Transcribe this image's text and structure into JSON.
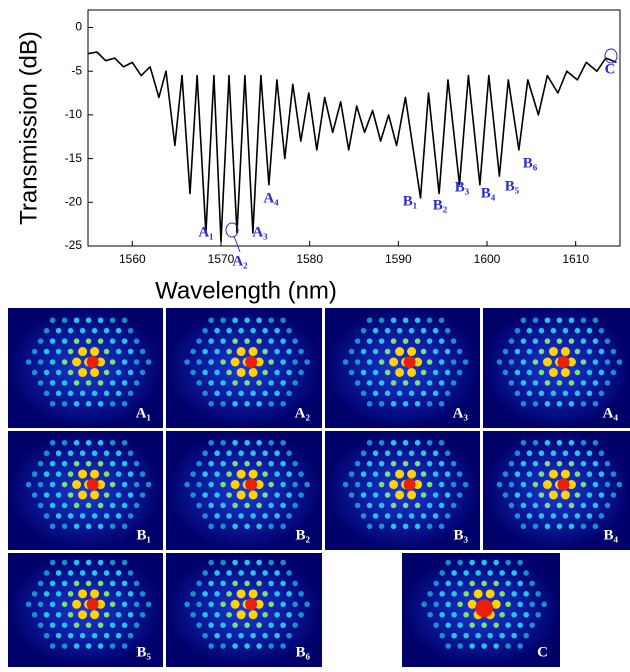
{
  "chart_data": {
    "type": "line",
    "xlabel": "Wavelength (nm)",
    "ylabel": "Transmission (dB)",
    "x": [
      1555,
      1556,
      1557,
      1558,
      1559,
      1560,
      1561,
      1562,
      1563,
      1563.8,
      1564.8,
      1565.6,
      1566.5,
      1567.3,
      1568.3,
      1569.2,
      1570.0,
      1570.9,
      1571.8,
      1572.7,
      1573.6,
      1574.5,
      1575.4,
      1576.3,
      1577.2,
      1578.1,
      1579,
      1579.9,
      1580.8,
      1581.7,
      1582.6,
      1583.5,
      1584.4,
      1585.3,
      1586.2,
      1587.1,
      1588,
      1588.9,
      1589.8,
      1590.8,
      1592.5,
      1593.4,
      1594.6,
      1595.6,
      1596.9,
      1597.9,
      1599.2,
      1600.2,
      1601.4,
      1602.4,
      1603.6,
      1604.6,
      1605.8,
      1606.8,
      1608,
      1609,
      1610.2,
      1611.2,
      1612.4,
      1613.4,
      1614.6
    ],
    "values": [
      -3,
      -2.8,
      -3.8,
      -3.5,
      -4.5,
      -4,
      -5.5,
      -4.5,
      -8,
      -5,
      -13.5,
      -5.5,
      -19,
      -5.5,
      -23.5,
      -5.5,
      -24.5,
      -5.5,
      -23.5,
      -5.5,
      -23.5,
      -5.5,
      -18,
      -6,
      -15,
      -6.5,
      -13,
      -7.5,
      -14,
      -8,
      -12,
      -8.5,
      -14,
      -9,
      -12,
      -9.5,
      -13,
      -10,
      -13.5,
      -8,
      -19.5,
      -7.5,
      -19,
      -6,
      -18,
      -5.5,
      -18,
      -5.5,
      -17,
      -6,
      -14,
      -6,
      -10,
      -5.5,
      -7.5,
      -5,
      -6,
      -4,
      -5,
      -3.5,
      -4
    ],
    "color": "#000000",
    "xlim": [
      1555,
      1615
    ],
    "ylim": [
      -25,
      2
    ],
    "xticks": [
      1560,
      1570,
      1580,
      1590,
      1600,
      1610
    ],
    "yticks": [
      0,
      -5,
      -10,
      -15,
      -20,
      -25
    ],
    "annotations": [
      "A₁",
      "A₂",
      "A₃",
      "A₄",
      "B₁",
      "B₂",
      "B₃",
      "B₄",
      "B₅",
      "B₆",
      "C"
    ],
    "images": [
      {
        "label": "A₁"
      },
      {
        "label": "A₂"
      },
      {
        "label": "A₃"
      },
      {
        "label": "A₄"
      },
      {
        "label": "B₁"
      },
      {
        "label": "B₂"
      },
      {
        "label": "B₃"
      },
      {
        "label": "B₄"
      },
      {
        "label": "B₅"
      },
      {
        "label": "B₆"
      },
      {
        "label": "C"
      }
    ]
  }
}
